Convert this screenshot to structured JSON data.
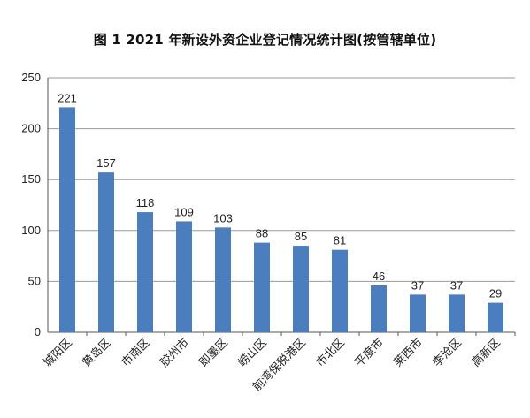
{
  "chart_data": {
    "type": "bar",
    "title": "图 1  2021 年新设外资企业登记情况统计图(按管辖单位)",
    "xlabel": "",
    "ylabel": "",
    "categories": [
      "城阳区",
      "黄岛区",
      "市南区",
      "胶州市",
      "即墨区",
      "崂山区",
      "前湾保税港区",
      "市北区",
      "平度市",
      "莱西市",
      "李沧区",
      "高新区"
    ],
    "values": [
      221,
      157,
      118,
      109,
      103,
      88,
      85,
      81,
      46,
      37,
      37,
      29
    ],
    "ylim": [
      0,
      250
    ],
    "yticks": [
      0,
      50,
      100,
      150,
      200,
      250
    ],
    "grid": true,
    "bar_color": "#4a7ebf",
    "grid_color": "#9a9a9a"
  }
}
